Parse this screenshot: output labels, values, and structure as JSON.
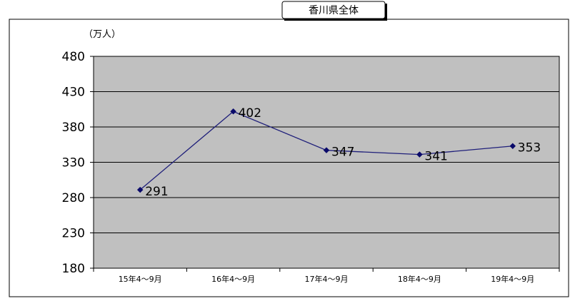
{
  "chart_data": {
    "type": "line",
    "title": "香川県全体",
    "unit_label": "（万人）",
    "categories": [
      "15年4～9月",
      "16年4～9月",
      "17年4～9月",
      "18年4～9月",
      "19年4～9月"
    ],
    "series": [
      {
        "values": [
          291,
          402,
          347,
          341,
          353
        ]
      }
    ],
    "ylim": [
      180,
      480
    ],
    "yticks": [
      180,
      230,
      280,
      330,
      380,
      430,
      480
    ],
    "grid": true,
    "legend": "none",
    "colors": {
      "line": "#1f1f7a",
      "marker": "#0a0a6a",
      "plot_background": "#c0c0c0",
      "gridline": "#000000",
      "border": "#000000"
    }
  }
}
